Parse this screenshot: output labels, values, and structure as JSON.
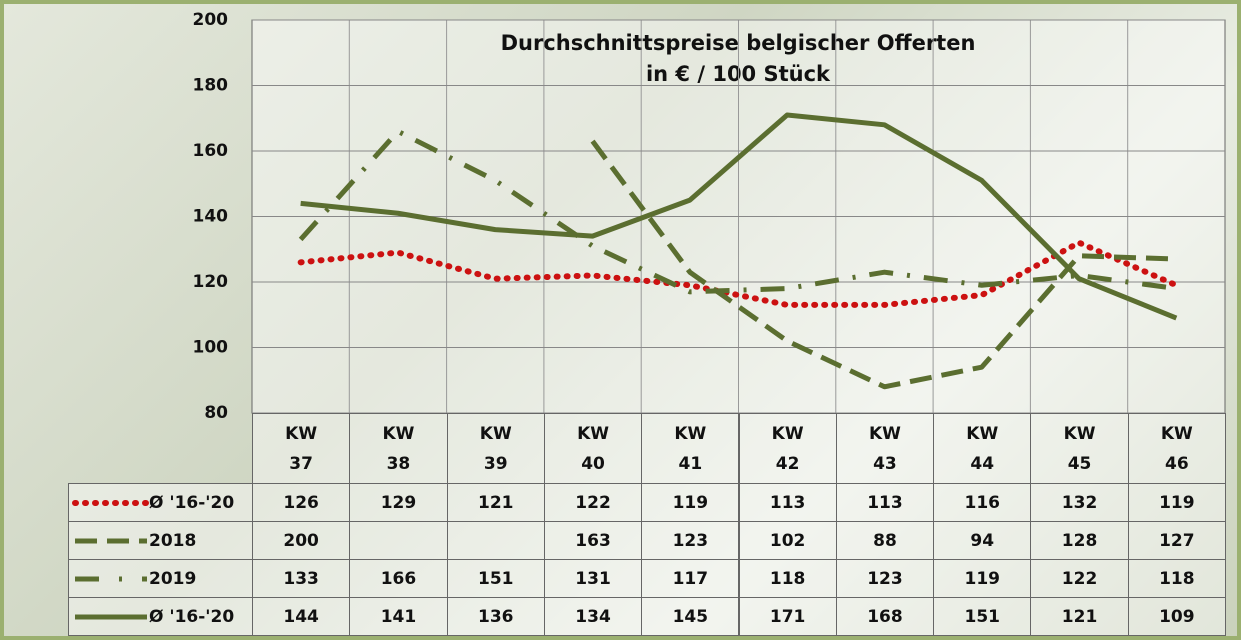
{
  "chart_data": {
    "type": "line",
    "title": [
      "Durchschnittspreise belgischer Offerten",
      "in € / 100 Stück"
    ],
    "categories": [
      "KW 37",
      "KW 38",
      "KW 39",
      "KW 40",
      "KW 41",
      "KW 42",
      "KW 43",
      "KW 44",
      "KW 45",
      "KW 46"
    ],
    "series": [
      {
        "name": "Ø '16-'20",
        "color": "#cc1111",
        "style": "dotted",
        "values": [
          126,
          129,
          121,
          122,
          119,
          113,
          113,
          116,
          132,
          119
        ]
      },
      {
        "name": "2018",
        "color": "#5b6e30",
        "style": "dashed",
        "values": [
          200,
          null,
          null,
          163,
          123,
          102,
          88,
          94,
          128,
          127
        ]
      },
      {
        "name": "2019",
        "color": "#5b6e30",
        "style": "dashdot",
        "values": [
          133,
          166,
          151,
          131,
          117,
          118,
          123,
          119,
          122,
          118
        ]
      },
      {
        "name": "Ø '16-'20",
        "color": "#5b6e30",
        "style": "solid",
        "values": [
          144,
          141,
          136,
          134,
          145,
          171,
          168,
          151,
          121,
          109
        ]
      }
    ],
    "ylim": [
      80,
      200
    ],
    "yticks": [
      80,
      100,
      120,
      140,
      160,
      180,
      200
    ],
    "grid": true
  }
}
